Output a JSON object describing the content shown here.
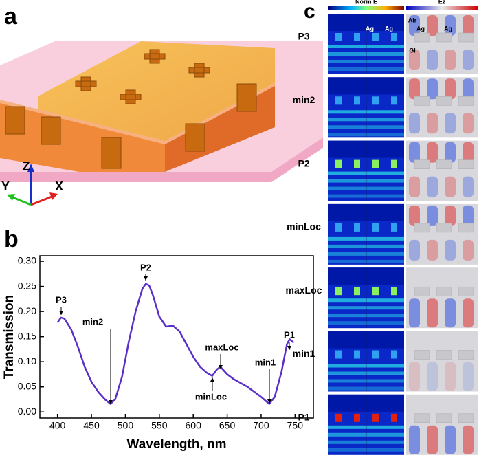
{
  "panel_labels": [
    "a",
    "b",
    "c"
  ],
  "axes_labels": {
    "x": "X",
    "y": "Y",
    "z": "Z"
  },
  "chart_data": {
    "type": "line",
    "xlabel": "Wavelength, nm",
    "ylabel": "Transmission",
    "x": [
      400,
      405,
      410,
      420,
      430,
      440,
      450,
      460,
      470,
      478,
      485,
      495,
      505,
      515,
      525,
      530,
      535,
      540,
      550,
      560,
      570,
      580,
      590,
      600,
      610,
      620,
      628,
      635,
      640,
      650,
      660,
      680,
      700,
      712,
      720,
      730,
      738,
      742,
      748
    ],
    "values": [
      0.178,
      0.188,
      0.186,
      0.165,
      0.13,
      0.09,
      0.06,
      0.04,
      0.025,
      0.016,
      0.025,
      0.07,
      0.14,
      0.2,
      0.245,
      0.255,
      0.252,
      0.235,
      0.19,
      0.17,
      0.172,
      0.16,
      0.135,
      0.11,
      0.09,
      0.078,
      0.072,
      0.085,
      0.09,
      0.075,
      0.065,
      0.05,
      0.03,
      0.016,
      0.03,
      0.08,
      0.135,
      0.145,
      0.138
    ],
    "color": "#5a2fc8",
    "xlim": [
      374,
      777
    ],
    "ylim": [
      -0.012,
      0.311
    ],
    "xticks": [
      400,
      450,
      500,
      550,
      600,
      650,
      700,
      750
    ],
    "yticks": [
      {
        "value": 0,
        "label": "0.00"
      },
      {
        "value": 0.05,
        "label": "0.05"
      },
      {
        "value": 0.1,
        "label": "0.10"
      },
      {
        "value": 0.15,
        "label": "0.15"
      },
      {
        "value": 0.2,
        "label": "0.20"
      },
      {
        "value": 0.25,
        "label": "0.25"
      },
      {
        "value": 0.3,
        "label": "0.30"
      }
    ],
    "annotations": [
      "P3",
      "min2",
      "P2",
      "minLoc",
      "maxLoc",
      "min1",
      "P1"
    ]
  },
  "field_maps": {
    "columns": [
      "Norm E",
      "Ez"
    ],
    "rows": [
      "P3",
      "min2",
      "P2",
      "minLoc",
      "maxLoc",
      "min1",
      "P1"
    ],
    "material_labels": [
      "Ag",
      "Ag",
      "Air",
      "Ag",
      "Ag",
      "Gl"
    ]
  }
}
